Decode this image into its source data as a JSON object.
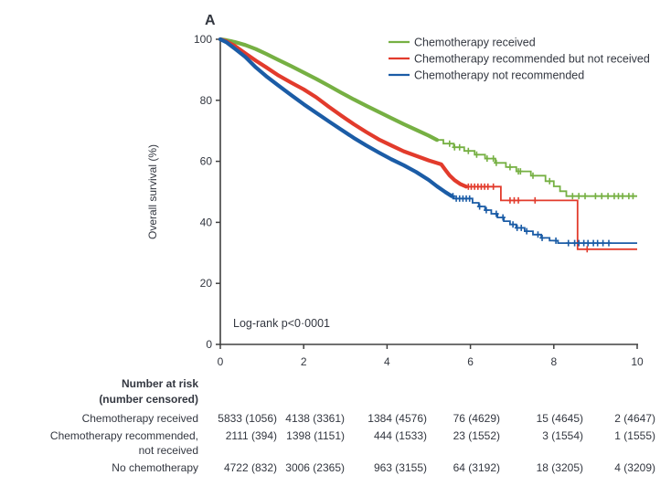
{
  "panel_label": "A",
  "annotation": "Log-rank p<0·0001",
  "y_axis": {
    "title": "Overall survival (%)",
    "ticks": [
      0,
      20,
      40,
      60,
      80,
      100
    ]
  },
  "x_axis": {
    "ticks": [
      0,
      2,
      4,
      6,
      8,
      10
    ]
  },
  "colors": {
    "green": "#76b043",
    "red": "#e23b2c",
    "blue": "#1b5ca6",
    "axis": "#404040",
    "text": "#333740"
  },
  "chart_data": {
    "type": "line",
    "subtype": "kaplan-meier",
    "title": "",
    "xlabel": "",
    "ylabel": "Overall survival (%)",
    "xlim": [
      0,
      10
    ],
    "ylim": [
      0,
      100
    ],
    "grid": false,
    "legend_position": "top-right",
    "annotation": "Log-rank p<0·0001",
    "series": [
      {
        "name": "Chemotherapy received",
        "color": "#76b043",
        "points_dense": [
          [
            0,
            100
          ],
          [
            0.15,
            99.7
          ],
          [
            0.35,
            99.1
          ],
          [
            0.6,
            98.1
          ],
          [
            0.85,
            96.8
          ],
          [
            1.1,
            95.2
          ],
          [
            1.4,
            93.2
          ],
          [
            1.7,
            91.2
          ],
          [
            2.0,
            89.1
          ],
          [
            2.3,
            87.0
          ],
          [
            2.6,
            84.8
          ],
          [
            2.9,
            82.5
          ],
          [
            3.2,
            80.3
          ],
          [
            3.5,
            78.2
          ],
          [
            3.8,
            76.2
          ],
          [
            4.1,
            74.2
          ],
          [
            4.4,
            72.2
          ],
          [
            4.7,
            70.3
          ],
          [
            5.0,
            68.4
          ],
          [
            5.2,
            67.0
          ]
        ],
        "points_tail": [
          [
            5.2,
            67
          ],
          [
            5.35,
            67
          ],
          [
            5.35,
            65.8
          ],
          [
            5.6,
            65.8
          ],
          [
            5.6,
            64.6
          ],
          [
            5.85,
            64.6
          ],
          [
            5.85,
            63.4
          ],
          [
            6.1,
            63.4
          ],
          [
            6.1,
            62.2
          ],
          [
            6.35,
            62.2
          ],
          [
            6.35,
            60.9
          ],
          [
            6.6,
            60.9
          ],
          [
            6.6,
            59.5
          ],
          [
            6.85,
            59.5
          ],
          [
            6.85,
            58.1
          ],
          [
            7.1,
            58.1
          ],
          [
            7.1,
            56.7
          ],
          [
            7.45,
            56.7
          ],
          [
            7.45,
            55.3
          ],
          [
            7.8,
            55.3
          ],
          [
            7.8,
            53.5
          ],
          [
            8.0,
            53.5
          ],
          [
            8.0,
            51.8
          ],
          [
            8.15,
            51.8
          ],
          [
            8.15,
            50.2
          ],
          [
            8.3,
            50.2
          ],
          [
            8.3,
            48.6
          ],
          [
            10,
            48.6
          ]
        ],
        "censor_x": [
          5.5,
          5.62,
          5.74,
          5.95,
          6.15,
          6.4,
          6.55,
          6.62,
          6.95,
          7.15,
          7.2,
          7.5,
          7.9,
          8.45,
          8.6,
          8.75,
          9.0,
          9.15,
          9.3,
          9.45,
          9.55,
          9.65,
          9.8,
          9.9
        ]
      },
      {
        "name": "Chemotherapy recommended but not received",
        "color": "#e23b2c",
        "points_dense": [
          [
            0,
            100
          ],
          [
            0.15,
            99.3
          ],
          [
            0.35,
            97.8
          ],
          [
            0.6,
            95.4
          ],
          [
            0.85,
            93.0
          ],
          [
            1.1,
            90.8
          ],
          [
            1.4,
            88.1
          ],
          [
            1.7,
            85.8
          ],
          [
            2.0,
            83.6
          ],
          [
            2.3,
            81.0
          ],
          [
            2.6,
            77.9
          ],
          [
            2.9,
            75.0
          ],
          [
            3.2,
            72.2
          ],
          [
            3.5,
            69.6
          ],
          [
            3.8,
            67.2
          ],
          [
            4.1,
            65.2
          ],
          [
            4.4,
            63.3
          ],
          [
            4.7,
            61.8
          ],
          [
            5.0,
            60.3
          ],
          [
            5.3,
            59.0
          ],
          [
            5.4,
            57.2
          ],
          [
            5.5,
            55.4
          ],
          [
            5.62,
            53.8
          ],
          [
            5.75,
            52.6
          ],
          [
            5.9,
            51.7
          ]
        ],
        "points_tail": [
          [
            5.9,
            51.7
          ],
          [
            6.73,
            51.7
          ],
          [
            6.73,
            47.2
          ],
          [
            8.57,
            47.2
          ],
          [
            8.57,
            31.2
          ],
          [
            10,
            31.2
          ]
        ],
        "censor_x": [
          5.95,
          6.02,
          6.1,
          6.18,
          6.26,
          6.34,
          6.42,
          6.55,
          6.95,
          7.05,
          7.15,
          7.55,
          8.8
        ]
      },
      {
        "name": "Chemotherapy not recommended",
        "color": "#1b5ca6",
        "points_dense": [
          [
            0,
            100
          ],
          [
            0.15,
            99.0
          ],
          [
            0.35,
            96.9
          ],
          [
            0.6,
            94.2
          ],
          [
            0.85,
            90.8
          ],
          [
            1.1,
            87.9
          ],
          [
            1.4,
            84.8
          ],
          [
            1.7,
            81.7
          ],
          [
            2.0,
            78.7
          ],
          [
            2.3,
            75.9
          ],
          [
            2.6,
            73.1
          ],
          [
            2.9,
            70.4
          ],
          [
            3.2,
            67.7
          ],
          [
            3.5,
            65.2
          ],
          [
            3.8,
            62.9
          ],
          [
            4.1,
            60.7
          ],
          [
            4.4,
            58.7
          ],
          [
            4.7,
            56.5
          ],
          [
            5.0,
            53.9
          ],
          [
            5.2,
            51.8
          ],
          [
            5.4,
            49.9
          ],
          [
            5.55,
            48.6
          ]
        ],
        "points_tail": [
          [
            5.55,
            48.6
          ],
          [
            5.6,
            48.6
          ],
          [
            5.6,
            47.8
          ],
          [
            6.05,
            47.8
          ],
          [
            6.05,
            46.4
          ],
          [
            6.2,
            46.4
          ],
          [
            6.2,
            45.2
          ],
          [
            6.35,
            45.2
          ],
          [
            6.35,
            44.0
          ],
          [
            6.5,
            44.0
          ],
          [
            6.5,
            42.8
          ],
          [
            6.65,
            42.8
          ],
          [
            6.65,
            41.6
          ],
          [
            6.8,
            41.6
          ],
          [
            6.8,
            40.4
          ],
          [
            6.95,
            40.4
          ],
          [
            6.95,
            39.3
          ],
          [
            7.1,
            39.3
          ],
          [
            7.1,
            38.2
          ],
          [
            7.3,
            38.2
          ],
          [
            7.3,
            37.1
          ],
          [
            7.5,
            37.1
          ],
          [
            7.5,
            36.0
          ],
          [
            7.7,
            36.0
          ],
          [
            7.7,
            34.9
          ],
          [
            7.9,
            34.9
          ],
          [
            7.9,
            34.0
          ],
          [
            8.1,
            34.0
          ],
          [
            8.1,
            33.2
          ],
          [
            10,
            33.2
          ]
        ],
        "censor_x": [
          5.58,
          5.66,
          5.74,
          5.82,
          5.9,
          5.98,
          6.22,
          6.38,
          6.62,
          6.78,
          7.02,
          7.12,
          7.22,
          7.35,
          7.62,
          7.72,
          8.05,
          8.35,
          8.5,
          8.6,
          8.72,
          8.82,
          8.95,
          9.05,
          9.18,
          9.32
        ]
      }
    ]
  },
  "legend": [
    {
      "label": "Chemotherapy received",
      "color": "#76b043"
    },
    {
      "label": "Chemotherapy recommended but not received",
      "color": "#e23b2c"
    },
    {
      "label": "Chemotherapy not recommended",
      "color": "#1b5ca6"
    }
  ],
  "risk_table": {
    "header_line1": "Number at risk",
    "header_line2": "(number censored)",
    "rows": [
      {
        "label_lines": [
          "Chemotherapy received"
        ],
        "values": [
          "5833 (1056)",
          "4138 (3361)",
          "1384 (4576)",
          "76 (4629)",
          "15 (4645)",
          "2 (4647)"
        ]
      },
      {
        "label_lines": [
          "Chemotherapy recommended,",
          "not received"
        ],
        "values": [
          "2111 (394)",
          "1398 (1151)",
          "444 (1533)",
          "23 (1552)",
          "3 (1554)",
          "1 (1555)"
        ]
      },
      {
        "label_lines": [
          "No chemotherapy"
        ],
        "values": [
          "4722 (832)",
          "3006 (2365)",
          "963 (3155)",
          "64 (3192)",
          "18 (3205)",
          "4 (3209)"
        ]
      }
    ]
  }
}
